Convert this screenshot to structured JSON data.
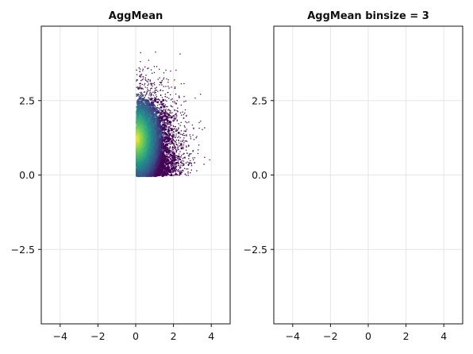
{
  "chart_data": [
    {
      "type": "heatmap",
      "title": "AggMean",
      "xlabel": "",
      "ylabel": "",
      "xlim": [
        -5,
        5
      ],
      "ylim": [
        -5,
        5
      ],
      "x_ticks": [
        -4,
        -2,
        0,
        2,
        4
      ],
      "x_tick_labels": [
        "−4",
        "−2",
        "0",
        "2",
        "4"
      ],
      "y_ticks": [
        -2.5,
        0,
        2.5
      ],
      "y_tick_labels": [
        "−2.5",
        "0.0",
        "2.5"
      ],
      "grid": true,
      "colormap": [
        "#440154",
        "#3b528b",
        "#21918c",
        "#5ec962",
        "#fde725"
      ],
      "description_of_data": "scatter density of points restricted to x >= 0 and y >= 0, aggregated by mean; dense core near (0.4, 1.2)",
      "density_regions": [
        {
          "x_min": 0,
          "x_max": 3.6,
          "y_min": 0,
          "y_max": 4.2
        }
      ]
    },
    {
      "type": "heatmap",
      "title": "AggMean binsize = 3",
      "xlabel": "",
      "ylabel": "",
      "xlim": [
        -5,
        5
      ],
      "ylim": [
        -5,
        5
      ],
      "x_ticks": [
        -4,
        -2,
        0,
        2,
        4
      ],
      "x_tick_labels": [
        "−4",
        "−2",
        "0",
        "2",
        "4"
      ],
      "y_ticks": [
        -2.5,
        0,
        2.5
      ],
      "y_tick_labels": [
        "−2.5",
        "0.0",
        "2.5"
      ],
      "grid": true
    }
  ]
}
